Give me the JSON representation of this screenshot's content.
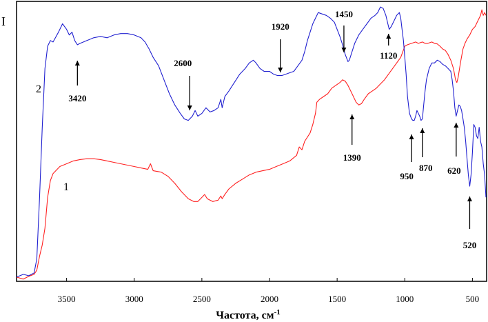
{
  "chart_data": {
    "type": "line",
    "title": "",
    "xlabel": "Частота, см",
    "xlabel_sup": "-1",
    "ylabel": "I",
    "xlim": [
      3870,
      395
    ],
    "ylim": [
      0,
      100
    ],
    "x_reversed": true,
    "xticks": [
      3500,
      3000,
      2500,
      2000,
      1500,
      1000,
      500
    ],
    "grid": false,
    "series": [
      {
        "name": "1",
        "color": "#ff2020",
        "points": [
          [
            3870,
            1.5
          ],
          [
            3820,
            0.8
          ],
          [
            3780,
            1.8
          ],
          [
            3740,
            2.5
          ],
          [
            3720,
            4
          ],
          [
            3700,
            9
          ],
          [
            3680,
            13
          ],
          [
            3660,
            19
          ],
          [
            3640,
            30
          ],
          [
            3620,
            36
          ],
          [
            3600,
            38.5
          ],
          [
            3550,
            41
          ],
          [
            3500,
            42
          ],
          [
            3450,
            43
          ],
          [
            3400,
            43.5
          ],
          [
            3350,
            43.8
          ],
          [
            3300,
            43.8
          ],
          [
            3250,
            43.5
          ],
          [
            3200,
            43
          ],
          [
            3150,
            42.5
          ],
          [
            3100,
            42
          ],
          [
            3050,
            41.5
          ],
          [
            3000,
            41
          ],
          [
            2950,
            40.5
          ],
          [
            2900,
            40
          ],
          [
            2880,
            42
          ],
          [
            2860,
            39.5
          ],
          [
            2800,
            39
          ],
          [
            2750,
            37.5
          ],
          [
            2700,
            35
          ],
          [
            2650,
            32
          ],
          [
            2600,
            29.5
          ],
          [
            2560,
            28.5
          ],
          [
            2530,
            28.5
          ],
          [
            2500,
            30
          ],
          [
            2480,
            31
          ],
          [
            2460,
            29.5
          ],
          [
            2420,
            28.5
          ],
          [
            2380,
            29
          ],
          [
            2360,
            30.5
          ],
          [
            2350,
            29.5
          ],
          [
            2330,
            31
          ],
          [
            2300,
            33
          ],
          [
            2250,
            35
          ],
          [
            2200,
            36.5
          ],
          [
            2150,
            38
          ],
          [
            2100,
            39
          ],
          [
            2050,
            39.5
          ],
          [
            2000,
            40
          ],
          [
            1950,
            41
          ],
          [
            1900,
            42
          ],
          [
            1850,
            43
          ],
          [
            1800,
            45
          ],
          [
            1780,
            48
          ],
          [
            1760,
            47
          ],
          [
            1740,
            50
          ],
          [
            1700,
            53
          ],
          [
            1680,
            56
          ],
          [
            1660,
            60
          ],
          [
            1650,
            64
          ],
          [
            1630,
            65
          ],
          [
            1600,
            66
          ],
          [
            1570,
            67
          ],
          [
            1540,
            69
          ],
          [
            1510,
            70
          ],
          [
            1480,
            71
          ],
          [
            1460,
            72
          ],
          [
            1440,
            71.5
          ],
          [
            1420,
            70
          ],
          [
            1400,
            68
          ],
          [
            1380,
            66
          ],
          [
            1360,
            64
          ],
          [
            1340,
            63
          ],
          [
            1320,
            63.5
          ],
          [
            1300,
            65
          ],
          [
            1270,
            67
          ],
          [
            1240,
            68
          ],
          [
            1210,
            69
          ],
          [
            1180,
            70.5
          ],
          [
            1150,
            72
          ],
          [
            1120,
            74
          ],
          [
            1090,
            76
          ],
          [
            1060,
            78
          ],
          [
            1030,
            80
          ],
          [
            1000,
            84
          ],
          [
            980,
            84.5
          ],
          [
            950,
            85
          ],
          [
            920,
            85.5
          ],
          [
            900,
            85
          ],
          [
            870,
            85.5
          ],
          [
            850,
            85
          ],
          [
            830,
            85
          ],
          [
            800,
            85.5
          ],
          [
            780,
            85
          ],
          [
            760,
            84.8
          ],
          [
            740,
            84
          ],
          [
            720,
            83
          ],
          [
            700,
            82.5
          ],
          [
            680,
            81
          ],
          [
            660,
            79
          ],
          [
            640,
            76
          ],
          [
            625,
            72
          ],
          [
            615,
            71
          ],
          [
            605,
            73
          ],
          [
            595,
            76
          ],
          [
            585,
            79
          ],
          [
            570,
            83
          ],
          [
            555,
            85
          ],
          [
            540,
            86.5
          ],
          [
            520,
            88
          ],
          [
            500,
            90
          ],
          [
            480,
            91
          ],
          [
            460,
            93
          ],
          [
            440,
            95
          ],
          [
            430,
            97
          ],
          [
            420,
            95
          ],
          [
            410,
            96
          ],
          [
            400,
            95
          ]
        ]
      },
      {
        "name": "2",
        "color": "#2020d0",
        "points": [
          [
            3870,
            1.5
          ],
          [
            3820,
            2.5
          ],
          [
            3780,
            2
          ],
          [
            3740,
            3
          ],
          [
            3720,
            8
          ],
          [
            3700,
            30
          ],
          [
            3680,
            55
          ],
          [
            3660,
            76
          ],
          [
            3640,
            84
          ],
          [
            3620,
            86
          ],
          [
            3600,
            85.5
          ],
          [
            3560,
            89
          ],
          [
            3530,
            92
          ],
          [
            3500,
            90
          ],
          [
            3480,
            88
          ],
          [
            3460,
            89
          ],
          [
            3440,
            86
          ],
          [
            3420,
            84.5
          ],
          [
            3400,
            85
          ],
          [
            3350,
            86
          ],
          [
            3300,
            87
          ],
          [
            3250,
            87.5
          ],
          [
            3200,
            87
          ],
          [
            3150,
            88
          ],
          [
            3100,
            88.5
          ],
          [
            3050,
            88.5
          ],
          [
            3000,
            88
          ],
          [
            2950,
            87
          ],
          [
            2920,
            85.5
          ],
          [
            2890,
            83
          ],
          [
            2860,
            80
          ],
          [
            2820,
            77
          ],
          [
            2780,
            72
          ],
          [
            2740,
            67
          ],
          [
            2700,
            63
          ],
          [
            2660,
            60
          ],
          [
            2630,
            58
          ],
          [
            2600,
            57.5
          ],
          [
            2570,
            59
          ],
          [
            2550,
            61
          ],
          [
            2530,
            59
          ],
          [
            2500,
            60
          ],
          [
            2470,
            62
          ],
          [
            2440,
            60.5
          ],
          [
            2410,
            61
          ],
          [
            2380,
            62
          ],
          [
            2360,
            65
          ],
          [
            2350,
            62
          ],
          [
            2330,
            66
          ],
          [
            2300,
            68
          ],
          [
            2260,
            71
          ],
          [
            2220,
            74
          ],
          [
            2180,
            76
          ],
          [
            2150,
            78
          ],
          [
            2120,
            79
          ],
          [
            2100,
            78
          ],
          [
            2070,
            76
          ],
          [
            2040,
            75
          ],
          [
            2000,
            75
          ],
          [
            1970,
            74
          ],
          [
            1940,
            73.5
          ],
          [
            1910,
            73.5
          ],
          [
            1880,
            74
          ],
          [
            1850,
            74.5
          ],
          [
            1820,
            75
          ],
          [
            1790,
            77
          ],
          [
            1760,
            79
          ],
          [
            1740,
            82
          ],
          [
            1720,
            86
          ],
          [
            1700,
            89
          ],
          [
            1680,
            92
          ],
          [
            1660,
            94
          ],
          [
            1640,
            96
          ],
          [
            1610,
            95.5
          ],
          [
            1580,
            95
          ],
          [
            1550,
            94
          ],
          [
            1520,
            92.5
          ],
          [
            1500,
            90
          ],
          [
            1480,
            87.5
          ],
          [
            1460,
            84.5
          ],
          [
            1440,
            81
          ],
          [
            1420,
            78.5
          ],
          [
            1410,
            79
          ],
          [
            1390,
            82
          ],
          [
            1370,
            85
          ],
          [
            1340,
            88
          ],
          [
            1310,
            90
          ],
          [
            1280,
            92
          ],
          [
            1250,
            94
          ],
          [
            1220,
            95
          ],
          [
            1200,
            96
          ],
          [
            1180,
            98
          ],
          [
            1160,
            97.5
          ],
          [
            1140,
            95
          ],
          [
            1125,
            92
          ],
          [
            1115,
            90
          ],
          [
            1100,
            91
          ],
          [
            1080,
            93
          ],
          [
            1060,
            95
          ],
          [
            1040,
            96
          ],
          [
            1030,
            94
          ],
          [
            1020,
            90
          ],
          [
            1010,
            86
          ],
          [
            1000,
            80
          ],
          [
            990,
            74
          ],
          [
            980,
            66
          ],
          [
            965,
            60
          ],
          [
            950,
            58
          ],
          [
            940,
            57.5
          ],
          [
            930,
            57.5
          ],
          [
            920,
            59
          ],
          [
            910,
            61
          ],
          [
            900,
            60
          ],
          [
            890,
            59
          ],
          [
            880,
            57.5
          ],
          [
            870,
            58
          ],
          [
            860,
            63
          ],
          [
            850,
            68
          ],
          [
            840,
            72
          ],
          [
            820,
            76
          ],
          [
            800,
            78
          ],
          [
            780,
            78
          ],
          [
            760,
            79
          ],
          [
            740,
            78.5
          ],
          [
            720,
            77.5
          ],
          [
            700,
            77
          ],
          [
            680,
            76
          ],
          [
            660,
            75
          ],
          [
            650,
            72
          ],
          [
            640,
            68
          ],
          [
            630,
            62
          ],
          [
            620,
            59
          ],
          [
            610,
            61
          ],
          [
            600,
            63
          ],
          [
            590,
            62.5
          ],
          [
            580,
            61
          ],
          [
            570,
            58
          ],
          [
            560,
            55
          ],
          [
            550,
            50
          ],
          [
            540,
            44
          ],
          [
            530,
            38
          ],
          [
            520,
            34
          ],
          [
            510,
            38
          ],
          [
            500,
            46
          ],
          [
            490,
            56
          ],
          [
            480,
            55
          ],
          [
            470,
            52
          ],
          [
            460,
            51
          ],
          [
            450,
            55
          ],
          [
            440,
            50
          ],
          [
            430,
            48
          ],
          [
            420,
            42
          ],
          [
            410,
            38
          ],
          [
            400,
            30
          ]
        ]
      }
    ],
    "annotations": [
      {
        "text": "3420",
        "x": 3420,
        "dir": "up"
      },
      {
        "text": "2600",
        "x": 2600,
        "dir": "down"
      },
      {
        "text": "1920",
        "x": 1920,
        "dir": "down"
      },
      {
        "text": "1450",
        "x": 1450,
        "dir": "down"
      },
      {
        "text": "1120",
        "x": 1120,
        "dir": "up"
      },
      {
        "text": "1390",
        "x": 1390,
        "dir": "up"
      },
      {
        "text": "950",
        "x": 950,
        "dir": "up"
      },
      {
        "text": "870",
        "x": 870,
        "dir": "up"
      },
      {
        "text": "620",
        "x": 620,
        "dir": "up"
      },
      {
        "text": "520",
        "x": 520,
        "dir": "up"
      }
    ]
  }
}
